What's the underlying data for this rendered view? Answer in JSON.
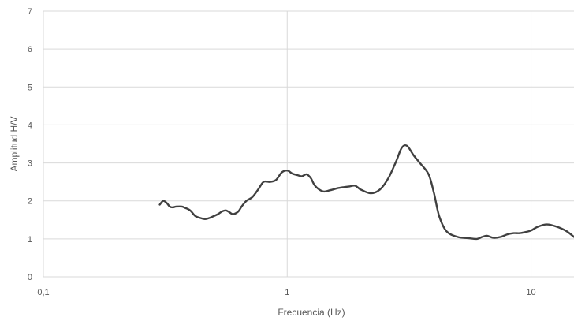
{
  "chart_data": {
    "type": "line",
    "xscale": "log",
    "xlim": [
      0.1,
      15
    ],
    "ylim": [
      0,
      7
    ],
    "grid": true,
    "legend": "none",
    "xlabel": "Frecuencia (Hz)",
    "ylabel": "Amplitud H/V",
    "x_ticks": [
      {
        "value": 0.1,
        "label": "0,1"
      },
      {
        "value": 1,
        "label": "1"
      },
      {
        "value": 10,
        "label": "10"
      }
    ],
    "y_ticks": [
      {
        "value": 0,
        "label": "0"
      },
      {
        "value": 1,
        "label": "1"
      },
      {
        "value": 2,
        "label": "2"
      },
      {
        "value": 3,
        "label": "3"
      },
      {
        "value": 4,
        "label": "4"
      },
      {
        "value": 5,
        "label": "5"
      },
      {
        "value": 6,
        "label": "6"
      },
      {
        "value": 7,
        "label": "7"
      }
    ],
    "series": [
      {
        "color": "#404040",
        "x": [
          0.3,
          0.31,
          0.32,
          0.33,
          0.34,
          0.35,
          0.37,
          0.38,
          0.4,
          0.42,
          0.44,
          0.46,
          0.48,
          0.5,
          0.52,
          0.54,
          0.56,
          0.58,
          0.6,
          0.63,
          0.65,
          0.68,
          0.72,
          0.76,
          0.8,
          0.85,
          0.9,
          0.95,
          1.0,
          1.05,
          1.1,
          1.15,
          1.2,
          1.25,
          1.3,
          1.4,
          1.5,
          1.6,
          1.7,
          1.8,
          1.9,
          2.0,
          2.2,
          2.4,
          2.6,
          2.8,
          2.95,
          3.1,
          3.3,
          3.5,
          3.8,
          4.0,
          4.2,
          4.5,
          5.0,
          5.5,
          6.0,
          6.3,
          6.6,
          7.0,
          7.5,
          8.0,
          8.5,
          9.0,
          9.5,
          10.0,
          10.5,
          11.0,
          11.5,
          12.0,
          13.0,
          14.0,
          15.0
        ],
        "y": [
          1.9,
          2.0,
          1.95,
          1.85,
          1.83,
          1.85,
          1.85,
          1.82,
          1.75,
          1.6,
          1.55,
          1.52,
          1.55,
          1.6,
          1.65,
          1.72,
          1.75,
          1.7,
          1.65,
          1.72,
          1.85,
          2.0,
          2.1,
          2.3,
          2.5,
          2.5,
          2.55,
          2.75,
          2.8,
          2.72,
          2.68,
          2.65,
          2.7,
          2.6,
          2.4,
          2.25,
          2.28,
          2.33,
          2.36,
          2.38,
          2.4,
          2.3,
          2.2,
          2.3,
          2.6,
          3.05,
          3.4,
          3.45,
          3.2,
          3.0,
          2.7,
          2.2,
          1.6,
          1.2,
          1.05,
          1.02,
          1.0,
          1.05,
          1.08,
          1.03,
          1.05,
          1.12,
          1.15,
          1.15,
          1.18,
          1.22,
          1.3,
          1.35,
          1.38,
          1.37,
          1.3,
          1.2,
          1.05
        ]
      }
    ]
  }
}
